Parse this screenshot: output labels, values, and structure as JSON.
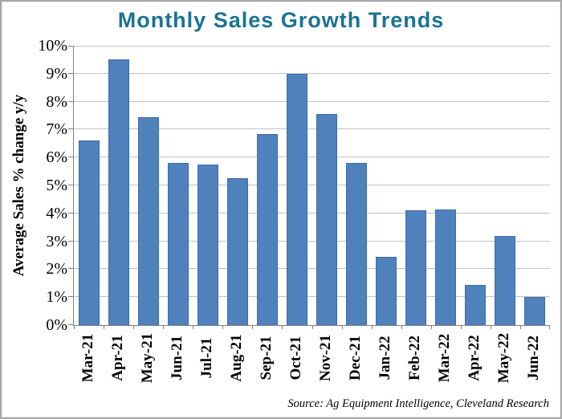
{
  "chart_data": {
    "type": "bar",
    "title": "Monthly Sales Growth Trends",
    "ylabel": "Average Sales % change y/y",
    "xlabel": "",
    "categories": [
      "Mar-21",
      "Apr-21",
      "May-21",
      "Jun-21",
      "Jul-21",
      "Aug-21",
      "Sep-21",
      "Oct-21",
      "Nov-21",
      "Dec-21",
      "Jan-22",
      "Feb-22",
      "Mar-22",
      "Apr-22",
      "May-22",
      "Jun-22"
    ],
    "values": [
      6.6,
      9.5,
      7.45,
      5.8,
      5.75,
      5.25,
      6.85,
      9.0,
      7.55,
      5.8,
      2.45,
      4.1,
      4.15,
      1.45,
      3.2,
      1.0
    ],
    "ylim": [
      0,
      10
    ],
    "ytick_step": 1,
    "ytick_suffix": "%",
    "grid": "horizontal",
    "legend": "none",
    "source_note": "Source: Ag Equipment Intelligence, Cleveland Research",
    "colors": {
      "title": "#1b7391",
      "bar_fill": "#4f81bd",
      "bar_border": "#3e6ba5",
      "gridline": "#c3c3c3",
      "axis": "#808080",
      "text": "#000000",
      "frame_border": "#a8a8a8",
      "background": "#ffffff"
    }
  }
}
